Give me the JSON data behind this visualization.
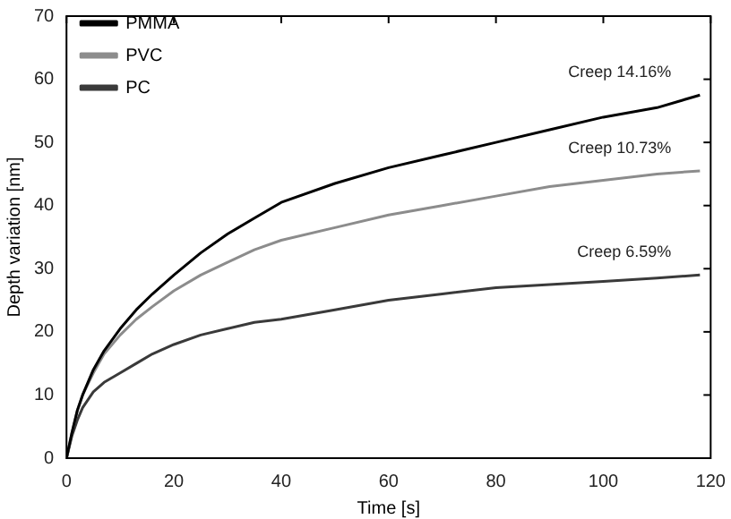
{
  "chart_data": {
    "type": "line",
    "xlabel": "Time [s]",
    "ylabel": "Depth variation [nm]",
    "xlim": [
      0,
      120
    ],
    "ylim": [
      0,
      70
    ],
    "xticks": [
      0,
      20,
      40,
      60,
      80,
      100,
      120
    ],
    "yticks": [
      0,
      10,
      20,
      30,
      40,
      50,
      60,
      70
    ],
    "grid": false,
    "legend": "top left",
    "marker": "none",
    "line_style": "solid",
    "x": [
      0,
      1,
      2,
      3,
      5,
      7,
      10,
      13,
      16,
      20,
      25,
      30,
      35,
      40,
      50,
      60,
      70,
      80,
      90,
      100,
      110,
      118
    ],
    "series": [
      {
        "name": "PMMA",
        "color": "#000000",
        "values": [
          0,
          4,
          7.5,
          10,
          14,
          17,
          20.5,
          23.5,
          26,
          29,
          32.5,
          35.5,
          38,
          40.5,
          43.5,
          46,
          48,
          50,
          52,
          54,
          55.5,
          57.5
        ]
      },
      {
        "name": "PVC",
        "color": "#8c8c8c",
        "values": [
          0,
          4,
          7.5,
          10,
          13.5,
          16.5,
          19.5,
          22,
          24,
          26.5,
          29,
          31,
          33,
          34.5,
          36.5,
          38.5,
          40,
          41.5,
          43,
          44,
          45,
          45.5
        ]
      },
      {
        "name": "PC",
        "color": "#3a3a3a",
        "values": [
          0,
          3.5,
          6,
          8,
          10.5,
          12,
          13.5,
          15,
          16.5,
          18,
          19.5,
          20.5,
          21.5,
          22,
          23.5,
          25,
          26,
          27,
          27.5,
          28,
          28.5,
          29
        ]
      }
    ],
    "annotations": [
      "Creep 14.16%",
      "Creep 10.73%",
      "Creep 6.59%"
    ]
  }
}
